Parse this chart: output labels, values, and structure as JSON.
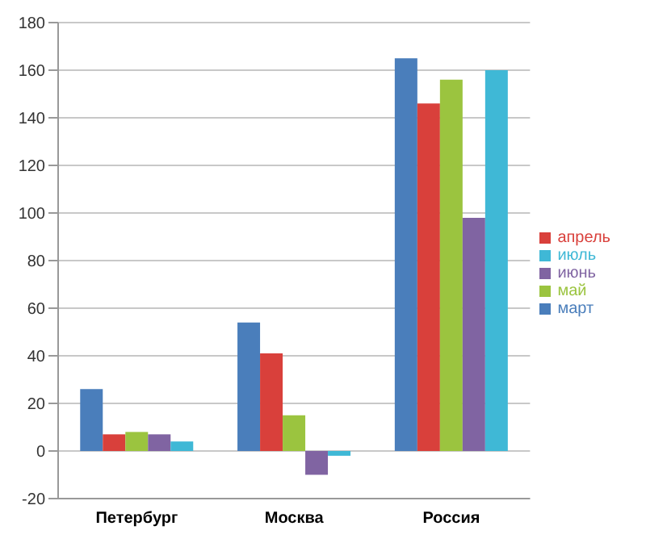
{
  "chart_data": {
    "type": "bar",
    "categories": [
      "Петербург",
      "Москва",
      "Россия"
    ],
    "series": [
      {
        "name": "март",
        "color": "#4a7ebb",
        "values": [
          26,
          54,
          165
        ]
      },
      {
        "name": "апрель",
        "color": "#d9403b",
        "values": [
          7,
          41,
          146
        ]
      },
      {
        "name": "май",
        "color": "#9bc43f",
        "values": [
          8,
          15,
          156
        ]
      },
      {
        "name": "июнь",
        "color": "#8064a2",
        "values": [
          7,
          -10,
          98
        ]
      },
      {
        "name": "июль",
        "color": "#3fb8d6",
        "values": [
          4,
          -2,
          160
        ]
      }
    ],
    "ylim": [
      -20,
      180
    ],
    "yticks": [
      -20,
      0,
      20,
      40,
      60,
      80,
      100,
      120,
      140,
      160,
      180
    ],
    "grid": "y",
    "legend": "right"
  }
}
